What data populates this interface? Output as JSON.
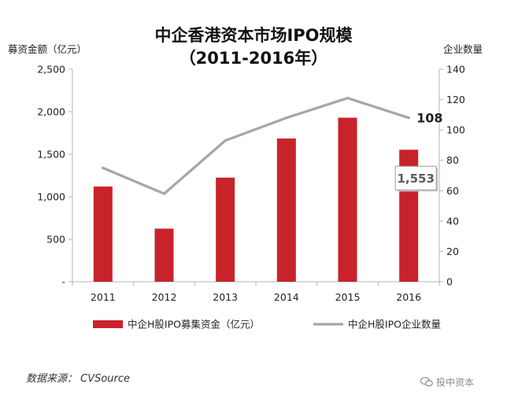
{
  "source_text": "数据来源： CVSource",
  "watermark": "投中资本",
  "chart_data": {
    "type": "bar+line",
    "title": "中企香港资本市场IPO规模",
    "subtitle": "（2011-2016年）",
    "categories": [
      "2011",
      "2012",
      "2013",
      "2014",
      "2015",
      "2016"
    ],
    "series": [
      {
        "name": "中企H股IPO募集资金（亿元）",
        "type": "bar",
        "axis": "left",
        "color": "#c8232b",
        "values": [
          1120,
          625,
          1225,
          1685,
          1930,
          1553
        ]
      },
      {
        "name": "中企H股IPO企业数量",
        "type": "line",
        "axis": "right",
        "color": "#a6a6a6",
        "values": [
          75,
          58,
          93,
          108,
          121,
          108
        ]
      }
    ],
    "left_axis": {
      "label": "募资金额（亿元）",
      "ylim": [
        0,
        2500
      ],
      "ticks": [
        0,
        500,
        1000,
        1500,
        2000,
        2500
      ],
      "tick_labels": [
        "-",
        "500",
        "1,000",
        "1,500",
        "2,000",
        "2,500"
      ]
    },
    "right_axis": {
      "label": "企业数量",
      "ylim": [
        0,
        140
      ],
      "ticks": [
        0,
        20,
        40,
        60,
        80,
        100,
        120,
        140
      ],
      "tick_labels": [
        "0",
        "20",
        "40",
        "60",
        "80",
        "100",
        "120",
        "140"
      ]
    },
    "annotations": [
      {
        "series": 0,
        "index": 5,
        "text": "1,553",
        "style": "callout-box"
      },
      {
        "series": 1,
        "index": 5,
        "text": "108",
        "style": "bold-label"
      }
    ],
    "grid": false,
    "legend_position": "bottom"
  }
}
